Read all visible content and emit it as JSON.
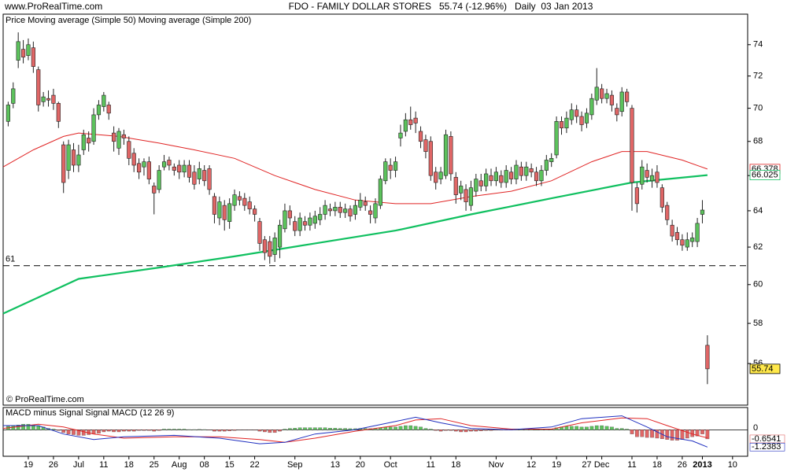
{
  "chart_data": [
    {
      "type": "candlestick",
      "source": "www.ProRealTime.com",
      "title": "FDO - FAMILY DOLLAR STORES   55.74 (-12.96%)   Daily  03 Jan 2013",
      "copyright": "© ProRealTime.com",
      "price_name": "Price",
      "up_color": "#5cc25c",
      "down_color": "#e06666",
      "log": true,
      "xlim": [
        -1,
        147
      ],
      "ylim": [
        54,
        76
      ],
      "yticks": [
        56,
        58,
        60,
        62,
        64,
        66,
        68,
        70,
        72,
        74
      ],
      "xticks": [
        {
          "value": 4,
          "label": "19"
        },
        {
          "value": 9,
          "label": "26"
        },
        {
          "value": 14,
          "label": "Jul"
        },
        {
          "value": 19,
          "label": "11"
        },
        {
          "value": 24,
          "label": "18"
        },
        {
          "value": 29,
          "label": "25"
        },
        {
          "value": 34,
          "label": "Aug"
        },
        {
          "value": 39,
          "label": "08"
        },
        {
          "value": 44,
          "label": "15"
        },
        {
          "value": 49,
          "label": "22"
        },
        {
          "value": 57,
          "label": "Sep"
        },
        {
          "value": 65,
          "label": "13"
        },
        {
          "value": 70,
          "label": "20"
        },
        {
          "value": 76,
          "label": "Oct"
        },
        {
          "value": 84,
          "label": "11"
        },
        {
          "value": 89,
          "label": "18"
        },
        {
          "value": 97,
          "label": "Nov"
        },
        {
          "value": 104,
          "label": "12"
        },
        {
          "value": 109,
          "label": "19"
        },
        {
          "value": 115,
          "label": "27"
        },
        {
          "value": 118,
          "label": "Dec"
        },
        {
          "value": 124,
          "label": "11"
        },
        {
          "value": 129,
          "label": "18"
        },
        {
          "value": 134,
          "label": "26"
        },
        {
          "value": 138,
          "label": "2013"
        },
        {
          "value": 144,
          "label": "10"
        }
      ],
      "hline": {
        "value": 61
      },
      "x": [
        0,
        1,
        2,
        3,
        4,
        5,
        6,
        7,
        8,
        9,
        10,
        11,
        12,
        13,
        14,
        15,
        16,
        17,
        18,
        19,
        20,
        21,
        22,
        23,
        24,
        25,
        26,
        27,
        28,
        29,
        30,
        31,
        32,
        33,
        34,
        35,
        36,
        37,
        38,
        39,
        40,
        41,
        42,
        43,
        44,
        45,
        46,
        47,
        48,
        49,
        50,
        51,
        52,
        53,
        54,
        55,
        56,
        57,
        58,
        59,
        60,
        61,
        62,
        63,
        64,
        65,
        66,
        67,
        68,
        69,
        70,
        71,
        72,
        73,
        74,
        75,
        76,
        77,
        78,
        79,
        80,
        81,
        82,
        83,
        84,
        85,
        86,
        87,
        88,
        89,
        90,
        91,
        92,
        93,
        94,
        95,
        96,
        97,
        98,
        99,
        100,
        101,
        102,
        103,
        104,
        105,
        106,
        107,
        108,
        109,
        110,
        111,
        112,
        113,
        114,
        115,
        116,
        117,
        118,
        119,
        120,
        121,
        122,
        123,
        124,
        125,
        126,
        127,
        128,
        129,
        130,
        131,
        132,
        133,
        134,
        135,
        136,
        137,
        138,
        139
      ],
      "open": [
        69.2,
        70.3,
        73.0,
        73.7,
        73.3,
        73.8,
        72.4,
        70.4,
        70.6,
        70.8,
        70.3,
        67.8,
        66.3,
        67.5,
        66.6,
        67.5,
        68.2,
        68.0,
        69.6,
        70.1,
        70.2,
        68.5,
        67.6,
        68.4,
        68.0,
        67.3,
        66.7,
        66.5,
        66.8,
        65.4,
        65.2,
        66.5,
        66.9,
        66.5,
        66.6,
        66.2,
        66.6,
        66.2,
        65.8,
        66.3,
        66.4,
        64.8,
        63.6,
        64.3,
        63.4,
        64.3,
        64.8,
        64.7,
        64.5,
        64.1,
        63.4,
        62.4,
        62.3,
        61.6,
        62.0,
        63.0,
        64.0,
        63.4,
        62.9,
        63.4,
        63.2,
        63.3,
        63.5,
        63.8,
        64.1,
        64.0,
        64.2,
        63.9,
        64.1,
        63.8,
        64.2,
        64.5,
        64.0,
        63.6,
        64.3,
        65.7,
        66.6,
        66.3,
        68.2,
        68.6,
        69.3,
        69.4,
        68.6,
        68.1,
        68.0,
        66.2,
        65.8,
        66.0,
        68.3,
        65.9,
        65.0,
        65.2,
        64.3,
        65.1,
        65.7,
        65.4,
        66.0,
        65.7,
        66.0,
        65.6,
        66.2,
        65.8,
        66.5,
        66.0,
        66.4,
        66.2,
        65.7,
        66.3,
        66.8,
        67.2,
        69.2,
        68.8,
        69.3,
        69.9,
        69.5,
        69.1,
        69.6,
        70.5,
        71.2,
        70.6,
        70.8,
        70.0,
        69.8,
        71.0,
        70.0,
        65.3,
        65.5,
        66.3,
        65.7,
        66.2,
        65.3,
        64.3,
        63.2,
        62.8,
        62.4,
        62.0,
        62.3,
        62.3,
        63.8,
        56.9
      ],
      "high": [
        70.4,
        71.6,
        74.8,
        74.3,
        74.4,
        74.2,
        72.6,
        71.0,
        71.1,
        71.2,
        70.4,
        68.0,
        68.1,
        67.9,
        67.8,
        68.7,
        68.6,
        70.0,
        70.5,
        71.0,
        70.4,
        68.9,
        68.8,
        68.7,
        68.3,
        67.6,
        67.0,
        67.0,
        67.1,
        65.6,
        66.6,
        67.2,
        67.1,
        66.7,
        66.9,
        66.9,
        66.9,
        66.6,
        66.8,
        66.6,
        66.6,
        65.0,
        64.8,
        64.6,
        64.7,
        65.2,
        65.1,
        65.0,
        64.8,
        64.3,
        63.6,
        62.6,
        62.6,
        62.8,
        63.5,
        64.4,
        64.3,
        63.7,
        63.9,
        63.7,
        63.9,
        64.0,
        64.2,
        64.6,
        64.4,
        64.5,
        64.5,
        64.4,
        64.3,
        64.6,
        65.0,
        64.8,
        64.3,
        64.7,
        66.0,
        67.0,
        67.0,
        67.1,
        69.0,
        69.7,
        70.1,
        69.8,
        68.9,
        68.4,
        68.3,
        66.5,
        66.5,
        68.7,
        68.6,
        66.2,
        65.7,
        65.5,
        65.7,
        66.1,
        66.1,
        66.4,
        66.4,
        66.5,
        66.3,
        66.6,
        66.5,
        66.9,
        66.8,
        66.8,
        66.7,
        66.5,
        66.6,
        67.2,
        67.3,
        69.5,
        69.5,
        69.8,
        70.3,
        70.2,
        69.8,
        70.0,
        70.9,
        72.5,
        71.5,
        71.2,
        71.1,
        70.3,
        71.3,
        71.2,
        70.2,
        65.6,
        66.9,
        66.7,
        66.4,
        66.6,
        65.5,
        64.5,
        63.5,
        63.1,
        62.7,
        62.8,
        62.8,
        63.6,
        64.6,
        57.4
      ],
      "low": [
        68.9,
        70.0,
        72.5,
        72.8,
        73.0,
        72.2,
        69.8,
        70.1,
        70.1,
        69.9,
        68.8,
        65.0,
        65.8,
        66.2,
        66.2,
        67.2,
        67.4,
        67.8,
        69.3,
        69.8,
        69.3,
        67.4,
        67.2,
        67.8,
        66.6,
        66.2,
        65.8,
        66.0,
        65.5,
        63.8,
        65.0,
        66.3,
        66.3,
        66.0,
        65.8,
        65.9,
        65.6,
        65.2,
        65.5,
        65.4,
        64.9,
        63.3,
        63.2,
        62.9,
        63.0,
        64.0,
        64.3,
        64.0,
        63.8,
        63.4,
        61.8,
        61.3,
        61.1,
        61.2,
        61.4,
        62.8,
        63.2,
        62.6,
        62.6,
        62.9,
        62.9,
        63.0,
        63.2,
        63.5,
        63.7,
        63.7,
        63.6,
        63.6,
        63.4,
        63.5,
        64.0,
        64.0,
        63.3,
        63.3,
        64.1,
        65.5,
        65.8,
        65.9,
        67.7,
        68.3,
        68.7,
        68.5,
        67.6,
        67.0,
        65.7,
        65.2,
        65.5,
        65.8,
        65.7,
        64.4,
        64.6,
        64.0,
        64.0,
        64.8,
        65.1,
        65.1,
        65.4,
        65.4,
        65.3,
        65.3,
        65.5,
        65.5,
        65.7,
        65.7,
        65.9,
        65.4,
        65.4,
        66.0,
        66.5,
        67.0,
        68.4,
        68.5,
        69.0,
        69.1,
        68.6,
        68.8,
        69.3,
        70.2,
        70.3,
        70.3,
        69.8,
        69.2,
        69.5,
        70.1,
        64.0,
        63.9,
        65.2,
        65.6,
        65.3,
        65.3,
        63.9,
        63.2,
        62.3,
        62.1,
        61.8,
        61.8,
        62.0,
        62.0,
        63.3,
        55.0
      ],
      "close": [
        70.2,
        71.2,
        74.2,
        73.2,
        74.0,
        72.6,
        70.2,
        70.7,
        70.5,
        70.3,
        69.2,
        65.6,
        67.8,
        66.6,
        67.2,
        68.4,
        67.9,
        69.6,
        70.2,
        70.8,
        69.7,
        68.0,
        68.6,
        68.2,
        67.0,
        66.6,
        66.2,
        66.8,
        65.8,
        65.0,
        66.3,
        66.8,
        66.6,
        66.3,
        66.2,
        66.6,
        65.9,
        65.5,
        66.4,
        65.7,
        65.2,
        63.8,
        64.5,
        63.5,
        64.4,
        64.9,
        64.6,
        64.3,
        64.1,
        63.8,
        62.2,
        61.7,
        61.5,
        62.5,
        63.2,
        64.0,
        63.6,
        62.9,
        63.6,
        63.2,
        63.6,
        63.7,
        63.8,
        64.3,
        64.0,
        64.2,
        63.9,
        64.1,
        63.7,
        64.3,
        64.6,
        64.3,
        63.8,
        64.4,
        65.8,
        66.8,
        66.3,
        66.8,
        68.5,
        69.3,
        69.0,
        69.1,
        68.0,
        67.4,
        66.0,
        65.6,
        66.2,
        68.4,
        66.1,
        64.9,
        65.4,
        64.5,
        65.3,
        65.8,
        65.4,
        66.1,
        65.7,
        66.2,
        65.6,
        66.3,
        65.8,
        66.6,
        66.0,
        66.5,
        66.2,
        65.7,
        66.3,
        66.9,
        67.0,
        69.2,
        68.8,
        69.4,
        69.9,
        69.5,
        69.0,
        69.7,
        70.6,
        71.3,
        70.6,
        70.9,
        70.2,
        69.6,
        71.0,
        70.4,
        65.6,
        64.4,
        66.5,
        65.9,
        66.0,
        65.6,
        64.2,
        63.5,
        62.6,
        62.4,
        62.1,
        62.4,
        62.5,
        63.3,
        64.04,
        55.74
      ],
      "lines": [
        {
          "name": "Moving average (Simple 50)",
          "color": "#e02424",
          "x": [
            -1,
            5,
            11,
            14,
            22,
            30,
            37,
            45,
            53,
            61,
            69,
            77,
            84,
            92,
            100,
            108,
            116,
            122,
            127,
            134,
            139
          ],
          "values": [
            66.5,
            67.5,
            68.3,
            68.5,
            68.3,
            67.9,
            67.5,
            67.0,
            66.0,
            65.2,
            64.6,
            64.4,
            64.4,
            64.8,
            65.1,
            65.7,
            66.8,
            67.4,
            67.4,
            66.9,
            66.378
          ]
        },
        {
          "name": "Moving average (Simple 200)",
          "color": "#10c060",
          "x": [
            -1,
            14,
            30,
            45,
            61,
            77,
            92,
            108,
            124,
            139
          ],
          "values": [
            58.5,
            60.3,
            60.9,
            61.5,
            62.2,
            62.9,
            63.8,
            64.7,
            65.6,
            66.025
          ]
        }
      ]
    },
    {
      "type": "macd",
      "xlim": [
        -1,
        147
      ],
      "ylim": [
        -1.9,
        1.6
      ],
      "yticks": [
        0
      ],
      "histogram": {
        "name": "MACD minus Signal",
        "color": "#e07070",
        "up_color": "#5cc25c",
        "down_color": "#e06666",
        "values": [
          0.25,
          0.3,
          0.35,
          0.4,
          0.4,
          0.35,
          0.3,
          0.2,
          0.1,
          0.05,
          -0.05,
          -0.2,
          -0.3,
          -0.35,
          -0.4,
          -0.4,
          -0.35,
          -0.3,
          -0.25,
          -0.15,
          -0.1,
          -0.15,
          -0.15,
          -0.1,
          -0.1,
          -0.1,
          -0.05,
          -0.05,
          -0.05,
          -0.1,
          -0.05,
          0.05,
          0.05,
          0.05,
          0.05,
          0.05,
          0.02,
          0.02,
          0.03,
          0.02,
          -0.02,
          -0.1,
          -0.1,
          -0.1,
          -0.08,
          -0.05,
          -0.03,
          -0.02,
          -0.02,
          -0.03,
          -0.1,
          -0.15,
          -0.2,
          -0.2,
          -0.1,
          0.05,
          0.1,
          0.12,
          0.15,
          0.15,
          0.15,
          0.15,
          0.15,
          0.15,
          0.12,
          0.12,
          0.1,
          0.1,
          0.08,
          0.08,
          0.1,
          0.1,
          0.08,
          0.1,
          0.15,
          0.2,
          0.2,
          0.2,
          0.25,
          0.3,
          0.3,
          0.25,
          0.2,
          0.1,
          0.05,
          -0.05,
          -0.1,
          -0.05,
          -0.05,
          -0.1,
          -0.15,
          -0.15,
          -0.1,
          -0.1,
          -0.08,
          -0.05,
          -0.05,
          -0.03,
          -0.03,
          -0.02,
          -0.02,
          0.02,
          0.02,
          0.02,
          0.02,
          0.0,
          0.02,
          0.05,
          0.05,
          0.15,
          0.2,
          0.25,
          0.25,
          0.25,
          0.2,
          0.2,
          0.25,
          0.3,
          0.3,
          0.25,
          0.2,
          0.1,
          0.1,
          0.05,
          -0.3,
          -0.5,
          -0.5,
          -0.55,
          -0.55,
          -0.6,
          -0.65,
          -0.7,
          -0.75,
          -0.75,
          -0.7,
          -0.6,
          -0.5,
          -0.45,
          -0.3,
          -0.6541
        ]
      },
      "series": [
        {
          "name": "Signal",
          "color": "#e02424",
          "x": [
            -1,
            6,
            11,
            17,
            23,
            33,
            42,
            50,
            55,
            61,
            69,
            77,
            81,
            86,
            92,
            100,
            108,
            114,
            122,
            127,
            131,
            136,
            139
          ],
          "values": [
            0.1,
            0.4,
            0.2,
            -0.3,
            -0.6,
            -0.5,
            -0.5,
            -0.7,
            -0.9,
            -0.6,
            -0.1,
            0.3,
            0.7,
            0.8,
            0.3,
            0.05,
            0.05,
            0.5,
            0.85,
            0.8,
            0.3,
            -0.3,
            -0.584
          ]
        },
        {
          "name": "MACD (12 26 9)",
          "color": "#2030c0",
          "x": [
            -1,
            6,
            11,
            17,
            23,
            33,
            42,
            50,
            55,
            61,
            69,
            77,
            81,
            86,
            92,
            100,
            108,
            114,
            122,
            127,
            131,
            136,
            139
          ],
          "values": [
            0.3,
            0.3,
            -0.3,
            -0.7,
            -0.5,
            -0.4,
            -0.6,
            -1.0,
            -0.9,
            -0.3,
            0.0,
            0.6,
            0.9,
            0.5,
            0.1,
            0.0,
            0.2,
            0.8,
            1.0,
            0.2,
            -0.5,
            -0.8,
            -1.2383
          ]
        }
      ]
    }
  ]
}
